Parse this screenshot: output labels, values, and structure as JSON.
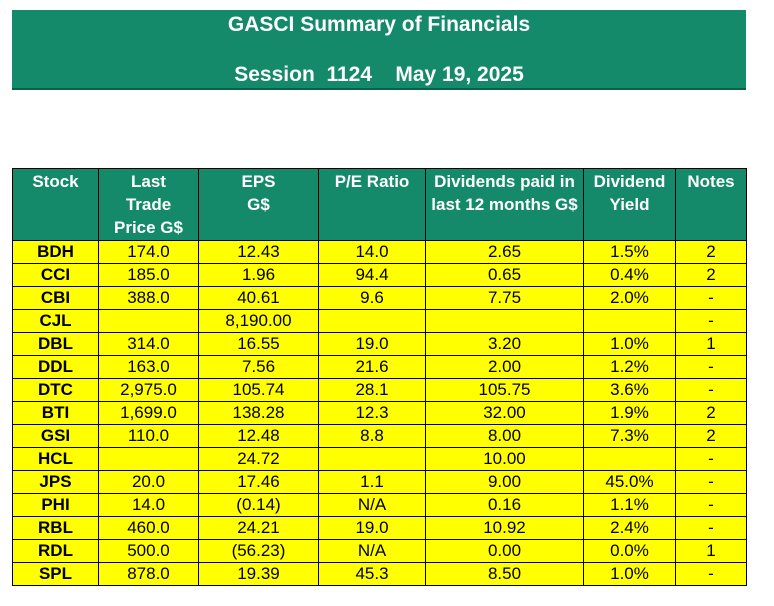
{
  "title": "GASCI Summary of Financials",
  "session_line": "Session  1124    May 19, 2025",
  "colors": {
    "header_bg": "#148a6a",
    "header_text": "#ffffff",
    "cell_bg": "#ffff00",
    "border": "#000000"
  },
  "columns": [
    "Stock",
    "Last Trade Price G$",
    "EPS G$",
    "P/E Ratio",
    "Dividends paid in last 12 months G$",
    "Dividend Yield",
    "Notes"
  ],
  "rows": [
    [
      "BDH",
      "174.0",
      "12.43",
      "14.0",
      "2.65",
      "1.5%",
      "2"
    ],
    [
      "CCI",
      "185.0",
      "1.96",
      "94.4",
      "0.65",
      "0.4%",
      "2"
    ],
    [
      "CBI",
      "388.0",
      "40.61",
      "9.6",
      "7.75",
      "2.0%",
      "-"
    ],
    [
      "CJL",
      "",
      "8,190.00",
      "",
      "",
      "",
      "-"
    ],
    [
      "DBL",
      "314.0",
      "16.55",
      "19.0",
      "3.20",
      "1.0%",
      "1"
    ],
    [
      "DDL",
      "163.0",
      "7.56",
      "21.6",
      "2.00",
      "1.2%",
      "-"
    ],
    [
      "DTC",
      "2,975.0",
      "105.74",
      "28.1",
      "105.75",
      "3.6%",
      "-"
    ],
    [
      "BTI",
      "1,699.0",
      "138.28",
      "12.3",
      "32.00",
      "1.9%",
      "2"
    ],
    [
      "GSI",
      "110.0",
      "12.48",
      "8.8",
      "8.00",
      "7.3%",
      "2"
    ],
    [
      "HCL",
      "",
      "24.72",
      "",
      "10.00",
      "",
      "-"
    ],
    [
      "JPS",
      "20.0",
      "17.46",
      "1.1",
      "9.00",
      "45.0%",
      "-"
    ],
    [
      "PHI",
      "14.0",
      "(0.14)",
      "N/A",
      "0.16",
      "1.1%",
      "-"
    ],
    [
      "RBL",
      "460.0",
      "24.21",
      "19.0",
      "10.92",
      "2.4%",
      "-"
    ],
    [
      "RDL",
      "500.0",
      "(56.23)",
      "N/A",
      "0.00",
      "0.0%",
      "1"
    ],
    [
      "SPL",
      "878.0",
      "19.39",
      "45.3",
      "8.50",
      "1.0%",
      "-"
    ]
  ]
}
